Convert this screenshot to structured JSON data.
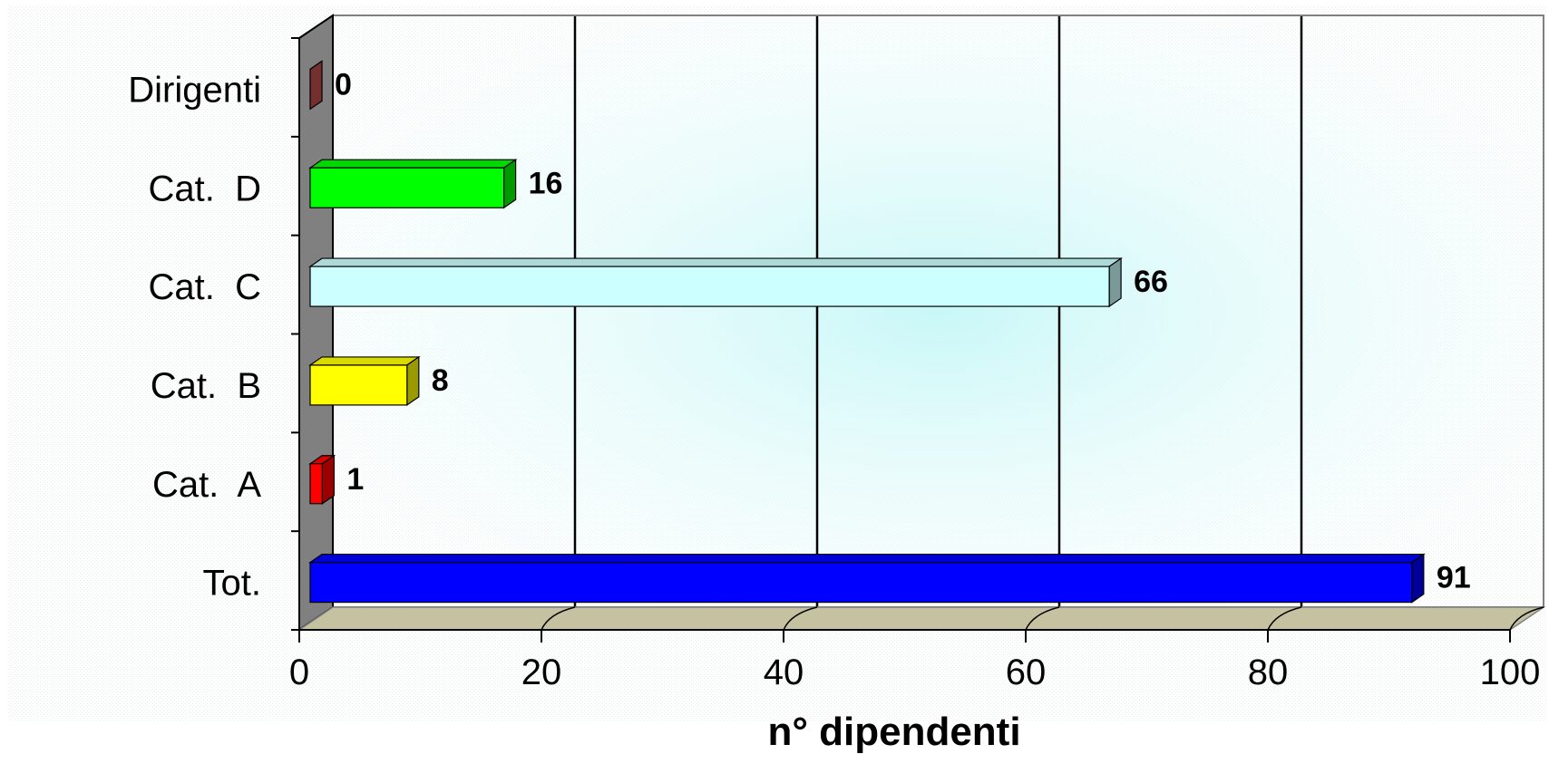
{
  "chart_data": {
    "type": "bar",
    "orientation": "horizontal",
    "style": "3d",
    "categories": [
      "Tot.",
      "Cat.  A",
      "Cat.  B",
      "Cat.  C",
      "Cat.  D",
      "Dirigenti"
    ],
    "values": [
      91,
      1,
      8,
      66,
      16,
      0
    ],
    "value_labels": [
      "91",
      "1",
      "8",
      "66",
      "16",
      "0"
    ],
    "colors": [
      "#0000ff",
      "#ff0000",
      "#ffff00",
      "#ccffff",
      "#00ff00",
      "#c0504d"
    ],
    "xlabel": "n° dipendenti",
    "ylabel": "",
    "title": "",
    "xlim": [
      0,
      100
    ],
    "x_ticks": [
      "0",
      "20",
      "40",
      "60",
      "80",
      "100"
    ],
    "x_tick_values": [
      0,
      20,
      40,
      60,
      80,
      100
    ],
    "grid": "vertical",
    "legend": "none"
  }
}
